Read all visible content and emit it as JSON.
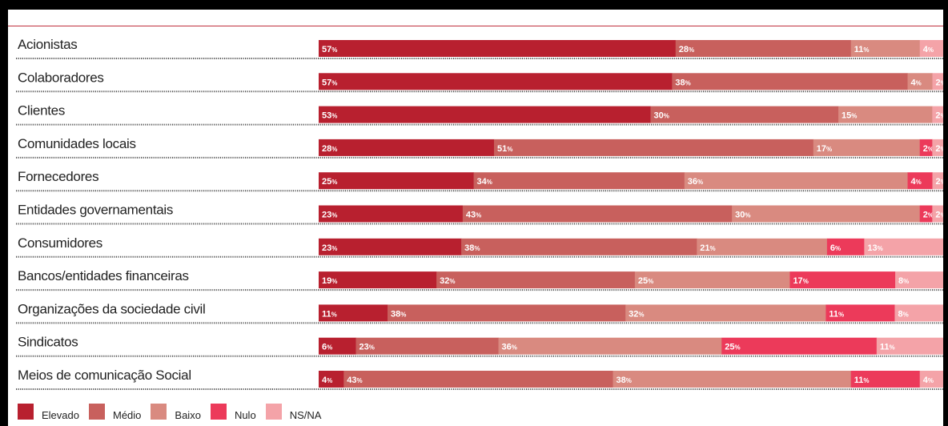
{
  "chart_data": {
    "type": "bar",
    "orientation": "horizontal",
    "stacked": true,
    "percent_suffix": "%",
    "categories": [
      "Acionistas",
      "Colaboradores",
      "Clientes",
      "Comunidades locais",
      "Fornecedores",
      "Entidades governamentais",
      "Consumidores",
      "Bancos/entidades financeiras",
      "Organizações da sociedade civil",
      "Sindicatos",
      "Meios de comunicação Social"
    ],
    "series": [
      {
        "name": "Elevado",
        "color": "#b8202f",
        "values": [
          57,
          57,
          53,
          28,
          25,
          23,
          23,
          19,
          11,
          6,
          4
        ]
      },
      {
        "name": "Médio",
        "color": "#c8605d",
        "values": [
          28,
          38,
          30,
          51,
          34,
          43,
          38,
          32,
          38,
          23,
          43
        ]
      },
      {
        "name": "Baixo",
        "color": "#d98a80",
        "values": [
          11,
          4,
          15,
          17,
          36,
          30,
          21,
          25,
          32,
          36,
          38
        ]
      },
      {
        "name": "Nulo",
        "color": "#ec3a5a",
        "values": [
          0,
          0,
          0,
          2,
          4,
          2,
          6,
          17,
          11,
          25,
          11
        ]
      },
      {
        "name": "NS/NA",
        "color": "#f4a3a8",
        "values": [
          4,
          2,
          2,
          2,
          2,
          2,
          13,
          8,
          8,
          11,
          4
        ]
      }
    ],
    "legend_position": "bottom-left",
    "grid": false
  }
}
